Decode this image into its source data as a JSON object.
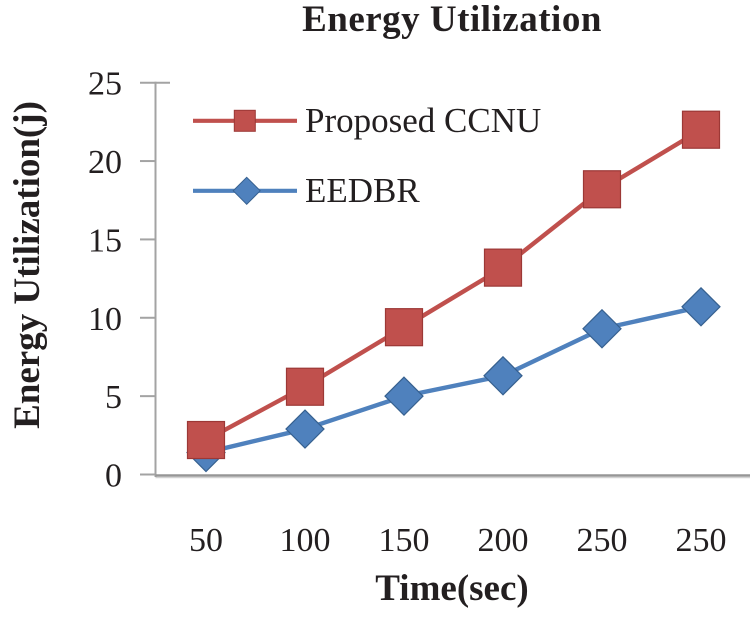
{
  "chart_data": {
    "type": "line",
    "title": "Energy Utilization",
    "xlabel": "Time(sec)",
    "ylabel": "Energy Utilization(j)",
    "categories": [
      "50",
      "100",
      "150",
      "200",
      "250",
      "250"
    ],
    "y_ticks": [
      0,
      5,
      10,
      15,
      20,
      25
    ],
    "ylim": [
      0,
      25
    ],
    "grid": false,
    "legend_position": "upper-left-inside",
    "series": [
      {
        "name": "Proposed CCNU",
        "marker": "square",
        "color": "#c0504d",
        "marker_border": "#9c3836",
        "values": [
          2.2,
          5.6,
          9.4,
          13.2,
          18.2,
          22.0
        ]
      },
      {
        "name": "EEDBR",
        "marker": "diamond",
        "color": "#4f81bd",
        "marker_border": "#36608f",
        "values": [
          1.4,
          2.9,
          5.0,
          6.3,
          9.3,
          10.7
        ]
      }
    ],
    "colors": {
      "axis": "#a3a3a3",
      "baseline": "#969696",
      "baseline_highlight": "#d2d2d2",
      "text": "#231f20",
      "background": "#ffffff"
    }
  }
}
